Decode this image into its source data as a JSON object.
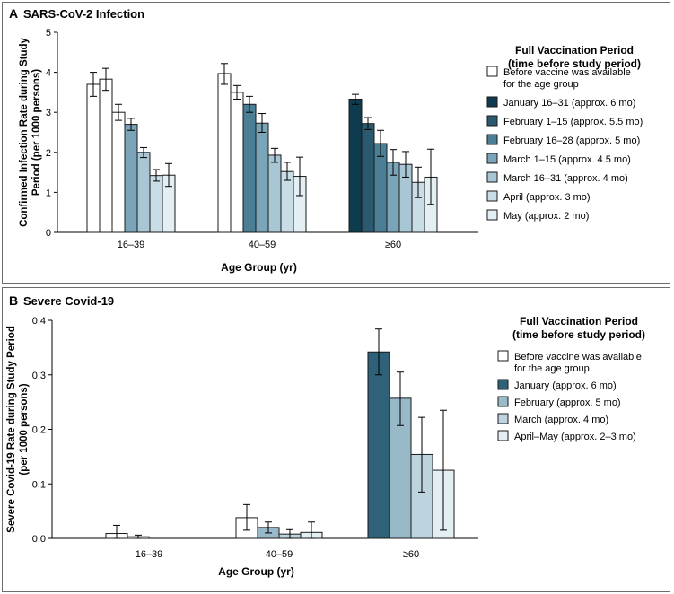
{
  "chart_data": [
    {
      "panel_letter": "A",
      "title": "SARS-CoV-2 Infection",
      "type": "bar",
      "ylabel_lines": [
        "Confirmed Infection Rate during Study",
        "Period (per 1000 persons)"
      ],
      "xlabel": "Age Group (yr)",
      "ylim": [
        0,
        5
      ],
      "yticks": [
        "0",
        "1",
        "2",
        "3",
        "4",
        "5"
      ],
      "categories": [
        "16–39",
        "40–59",
        "≥60"
      ],
      "legend_title": [
        "Full Vaccination Period",
        "(time before study period)"
      ],
      "legend": [
        {
          "lines": [
            "Before vaccine was available",
            "for the age group"
          ],
          "color": "#ffffff"
        },
        {
          "lines": [
            "January 16–31 (approx. 6 mo)"
          ],
          "color": "#0f3b4f"
        },
        {
          "lines": [
            "February 1–15 (approx. 5.5 mo)"
          ],
          "color": "#2b5a70"
        },
        {
          "lines": [
            "February 16–28 (approx. 5 mo)"
          ],
          "color": "#4a7f96"
        },
        {
          "lines": [
            "March 1–15 (approx. 4.5 mo)"
          ],
          "color": "#7aa5b9"
        },
        {
          "lines": [
            "March 16–31 (approx. 4 mo)"
          ],
          "color": "#a8c6d4"
        },
        {
          "lines": [
            "April (approx. 3 mo)"
          ],
          "color": "#c9dde6"
        },
        {
          "lines": [
            "May (approx. 2 mo)"
          ],
          "color": "#e4eff4"
        }
      ],
      "groups": [
        {
          "bars": [
            {
              "color": "#ffffff",
              "value": 3.7,
              "lo": 3.4,
              "hi": 4.0
            },
            {
              "color": "#ffffff",
              "value": 3.83,
              "lo": 3.55,
              "hi": 4.1
            },
            {
              "color": "#ffffff",
              "value": 3.0,
              "lo": 2.8,
              "hi": 3.2
            },
            {
              "color": "#7aa5b9",
              "value": 2.7,
              "lo": 2.55,
              "hi": 2.85
            },
            {
              "color": "#a8c6d4",
              "value": 2.0,
              "lo": 1.87,
              "hi": 2.12
            },
            {
              "color": "#c9dde6",
              "value": 1.42,
              "lo": 1.28,
              "hi": 1.57
            },
            {
              "color": "#e4eff4",
              "value": 1.43,
              "lo": 1.15,
              "hi": 1.72
            }
          ]
        },
        {
          "bars": [
            {
              "color": "#ffffff",
              "value": 3.97,
              "lo": 3.7,
              "hi": 4.22
            },
            {
              "color": "#ffffff",
              "value": 3.5,
              "lo": 3.33,
              "hi": 3.67
            },
            {
              "color": "#4a7f96",
              "value": 3.2,
              "lo": 3.0,
              "hi": 3.4
            },
            {
              "color": "#7aa5b9",
              "value": 2.73,
              "lo": 2.5,
              "hi": 2.97
            },
            {
              "color": "#a8c6d4",
              "value": 1.93,
              "lo": 1.75,
              "hi": 2.1
            },
            {
              "color": "#c9dde6",
              "value": 1.52,
              "lo": 1.3,
              "hi": 1.75
            },
            {
              "color": "#e4eff4",
              "value": 1.4,
              "lo": 0.92,
              "hi": 1.88
            }
          ]
        },
        {
          "bars": [
            {
              "color": "#0f3b4f",
              "value": 3.33,
              "lo": 3.2,
              "hi": 3.45
            },
            {
              "color": "#2b5a70",
              "value": 2.72,
              "lo": 2.57,
              "hi": 2.87
            },
            {
              "color": "#4a7f96",
              "value": 2.22,
              "lo": 1.9,
              "hi": 2.55
            },
            {
              "color": "#7aa5b9",
              "value": 1.75,
              "lo": 1.43,
              "hi": 2.07
            },
            {
              "color": "#a8c6d4",
              "value": 1.7,
              "lo": 1.38,
              "hi": 2.02
            },
            {
              "color": "#c9dde6",
              "value": 1.25,
              "lo": 0.87,
              "hi": 1.63
            },
            {
              "color": "#e4eff4",
              "value": 1.38,
              "lo": 0.7,
              "hi": 2.08
            }
          ]
        }
      ]
    },
    {
      "panel_letter": "B",
      "title": "Severe Covid-19",
      "type": "bar",
      "ylabel_lines": [
        "Severe Covid-19 Rate during Study Period",
        "(per 1000 persons)"
      ],
      "xlabel": "Age Group (yr)",
      "ylim": [
        0,
        0.4
      ],
      "yticks": [
        "0.0",
        "0.1",
        "0.2",
        "0.3",
        "0.4"
      ],
      "categories": [
        "16–39",
        "40–59",
        "≥60"
      ],
      "legend_title": [
        "Full Vaccination Period",
        "(time before study period)"
      ],
      "legend": [
        {
          "lines": [
            "Before vaccine was available",
            "for the age group"
          ],
          "color": "#ffffff"
        },
        {
          "lines": [
            "January (approx. 6 mo)"
          ],
          "color": "#2f6178"
        },
        {
          "lines": [
            "February (approx. 5 mo)"
          ],
          "color": "#98b9c8"
        },
        {
          "lines": [
            "March (approx. 4 mo)"
          ],
          "color": "#bdd3dd"
        },
        {
          "lines": [
            "April–May (approx. 2–3 mo)"
          ],
          "color": "#e4eff4"
        }
      ],
      "groups": [
        {
          "bars": [
            {
              "color": "#ffffff",
              "value": 0.009,
              "lo": 0.0,
              "hi": 0.024
            },
            {
              "color": "#ffffff",
              "value": 0.003,
              "lo": 0.0,
              "hi": 0.006
            },
            {
              "color": "#ffffff",
              "value": 0.0,
              "lo": 0.0,
              "hi": 0.0
            }
          ]
        },
        {
          "bars": [
            {
              "color": "#ffffff",
              "value": 0.038,
              "lo": 0.015,
              "hi": 0.062
            },
            {
              "color": "#98b9c8",
              "value": 0.02,
              "lo": 0.01,
              "hi": 0.03
            },
            {
              "color": "#bdd3dd",
              "value": 0.008,
              "lo": 0.0,
              "hi": 0.016
            },
            {
              "color": "#e4eff4",
              "value": 0.011,
              "lo": 0.0,
              "hi": 0.03
            }
          ]
        },
        {
          "bars": [
            {
              "color": "#2f6178",
              "value": 0.342,
              "lo": 0.3,
              "hi": 0.384
            },
            {
              "color": "#98b9c8",
              "value": 0.257,
              "lo": 0.207,
              "hi": 0.305
            },
            {
              "color": "#bdd3dd",
              "value": 0.154,
              "lo": 0.085,
              "hi": 0.222
            },
            {
              "color": "#e4eff4",
              "value": 0.125,
              "lo": 0.015,
              "hi": 0.235
            }
          ]
        }
      ]
    }
  ]
}
